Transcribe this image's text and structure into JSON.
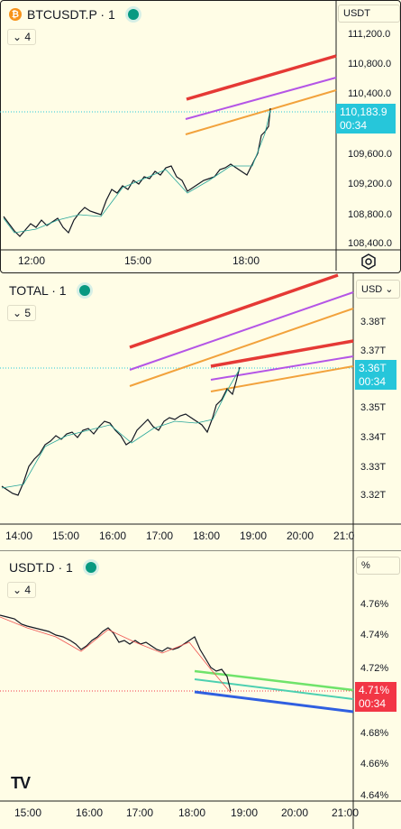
{
  "panes": [
    {
      "title": "BTCUSDT.P · 1",
      "indicator_count": "4",
      "currency": "USDT",
      "yticks": [
        "111,200.0",
        "110,800.0",
        "110,400.0",
        "109,600.0",
        "109,200.0",
        "108,800.0",
        "108,400.0"
      ],
      "xticks": [
        "12:00",
        "15:00",
        "18:00"
      ],
      "price": "110,183.9",
      "countdown": "00:34",
      "badge_color": "#26c6da"
    },
    {
      "title": "TOTAL · 1",
      "indicator_count": "5",
      "currency": "USD",
      "yticks": [
        "3.38T",
        "3.37T",
        "3.35T",
        "3.34T",
        "3.33T",
        "3.32T"
      ],
      "xticks": [
        "14:00",
        "15:00",
        "16:00",
        "17:00",
        "18:00",
        "19:00",
        "20:00",
        "21:0"
      ],
      "price": "3.36T",
      "countdown": "00:34",
      "badge_color": "#26c6da"
    },
    {
      "title": "USDT.D · 1",
      "indicator_count": "4",
      "currency": "%",
      "yticks": [
        "4.76%",
        "4.74%",
        "4.72%",
        "4.68%",
        "4.66%",
        "4.64%"
      ],
      "xticks": [
        "15:00",
        "16:00",
        "17:00",
        "18:00",
        "19:00",
        "20:00",
        "21:00"
      ],
      "price": "4.71%",
      "countdown": "00:34",
      "badge_color": "#f23645"
    }
  ],
  "colors": {
    "red_line": "#e53935",
    "purple_line": "#b455e6",
    "orange_line": "#f2a23c",
    "green_line": "#6fe36a",
    "teal_line": "#4dd0b0",
    "blue_line": "#2f5fe0",
    "candle_up": "#26a69a",
    "candle_down": "#ef5350"
  },
  "logo": "TV",
  "icons": [
    "bitcoin-icon",
    "status-dot-icon",
    "gear-icon",
    "chevron-down-icon"
  ]
}
